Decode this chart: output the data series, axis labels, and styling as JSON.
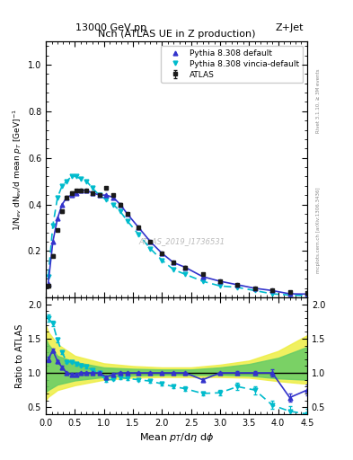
{
  "title_top": "13000 GeV pp",
  "title_right": "Z+Jet",
  "plot_title": "Nch (ATLAS UE in Z production)",
  "xlabel": "Mean $p_T$/d$\\eta$ d$\\phi$",
  "ylabel_main": "1/N$_{ev}$ dN$_{ev}$/d mean $p_T$ [GeV]$^{-1}$",
  "ylabel_ratio": "Ratio to ATLAS",
  "watermark": "ATLAS_2019_I1736531",
  "rivet_text": "Rivet 3.1.10, ≥ 3M events",
  "mcplots_text": "mcplots.cern.ch [arXiv:1306.3436]",
  "atlas_x": [
    0.04,
    0.12,
    0.2,
    0.28,
    0.36,
    0.44,
    0.52,
    0.6,
    0.7,
    0.8,
    0.92,
    1.04,
    1.16,
    1.28,
    1.4,
    1.6,
    1.8,
    2.0,
    2.2,
    2.4,
    2.7,
    3.0,
    3.3,
    3.6,
    3.9,
    4.2,
    4.5
  ],
  "atlas_y": [
    0.05,
    0.18,
    0.29,
    0.37,
    0.43,
    0.45,
    0.46,
    0.46,
    0.46,
    0.45,
    0.44,
    0.47,
    0.44,
    0.4,
    0.36,
    0.3,
    0.24,
    0.19,
    0.15,
    0.13,
    0.1,
    0.07,
    0.055,
    0.04,
    0.03,
    0.025,
    0.02
  ],
  "atlas_yerr": [
    0.005,
    0.005,
    0.005,
    0.005,
    0.005,
    0.005,
    0.005,
    0.005,
    0.005,
    0.005,
    0.005,
    0.005,
    0.005,
    0.005,
    0.005,
    0.005,
    0.005,
    0.005,
    0.004,
    0.004,
    0.003,
    0.003,
    0.002,
    0.002,
    0.002,
    0.002,
    0.002
  ],
  "pythia_default_x": [
    0.04,
    0.12,
    0.2,
    0.28,
    0.36,
    0.44,
    0.52,
    0.6,
    0.7,
    0.8,
    0.92,
    1.04,
    1.16,
    1.28,
    1.4,
    1.6,
    1.8,
    2.0,
    2.2,
    2.4,
    2.7,
    3.0,
    3.3,
    3.6,
    3.9,
    4.2,
    4.5
  ],
  "pythia_default_y": [
    0.06,
    0.24,
    0.34,
    0.4,
    0.43,
    0.44,
    0.45,
    0.46,
    0.46,
    0.45,
    0.44,
    0.44,
    0.43,
    0.4,
    0.36,
    0.3,
    0.24,
    0.19,
    0.15,
    0.13,
    0.09,
    0.07,
    0.055,
    0.04,
    0.03,
    0.016,
    0.015
  ],
  "pythia_vincia_x": [
    0.04,
    0.12,
    0.2,
    0.28,
    0.36,
    0.44,
    0.52,
    0.6,
    0.7,
    0.8,
    0.92,
    1.04,
    1.16,
    1.28,
    1.4,
    1.6,
    1.8,
    2.0,
    2.2,
    2.4,
    2.7,
    3.0,
    3.3,
    3.6,
    3.9,
    4.2,
    4.5
  ],
  "pythia_vincia_y": [
    0.09,
    0.31,
    0.43,
    0.48,
    0.5,
    0.52,
    0.52,
    0.51,
    0.5,
    0.47,
    0.44,
    0.42,
    0.4,
    0.37,
    0.33,
    0.27,
    0.21,
    0.16,
    0.12,
    0.1,
    0.07,
    0.05,
    0.044,
    0.03,
    0.016,
    0.011,
    0.008
  ],
  "ratio_default_y": [
    1.2,
    1.33,
    1.17,
    1.08,
    1.0,
    0.98,
    0.98,
    1.0,
    1.0,
    1.0,
    1.0,
    0.94,
    0.98,
    1.0,
    1.0,
    1.0,
    1.0,
    1.0,
    1.0,
    1.0,
    0.9,
    1.0,
    1.0,
    1.0,
    1.0,
    0.64,
    0.75
  ],
  "ratio_default_err": [
    0.04,
    0.03,
    0.02,
    0.02,
    0.02,
    0.02,
    0.02,
    0.02,
    0.02,
    0.02,
    0.02,
    0.02,
    0.02,
    0.02,
    0.02,
    0.02,
    0.02,
    0.02,
    0.02,
    0.02,
    0.02,
    0.02,
    0.03,
    0.03,
    0.05,
    0.06,
    0.08
  ],
  "ratio_vincia_y": [
    1.8,
    1.72,
    1.48,
    1.3,
    1.16,
    1.16,
    1.13,
    1.11,
    1.09,
    1.04,
    1.0,
    0.89,
    0.91,
    0.93,
    0.92,
    0.9,
    0.88,
    0.84,
    0.8,
    0.77,
    0.7,
    0.71,
    0.8,
    0.75,
    0.53,
    0.44,
    0.4
  ],
  "ratio_vincia_err": [
    0.05,
    0.04,
    0.03,
    0.03,
    0.02,
    0.02,
    0.02,
    0.02,
    0.02,
    0.02,
    0.02,
    0.02,
    0.02,
    0.02,
    0.02,
    0.02,
    0.02,
    0.02,
    0.02,
    0.03,
    0.03,
    0.04,
    0.05,
    0.06,
    0.06,
    0.07,
    0.08
  ],
  "yellow_band_x": [
    0.0,
    0.04,
    0.2,
    0.5,
    1.0,
    1.5,
    2.0,
    2.5,
    3.0,
    3.5,
    4.0,
    4.5
  ],
  "yellow_band_low": [
    0.6,
    0.65,
    0.75,
    0.82,
    0.9,
    0.93,
    0.94,
    0.94,
    0.94,
    0.93,
    0.88,
    0.84
  ],
  "yellow_band_high": [
    1.7,
    1.6,
    1.42,
    1.25,
    1.14,
    1.1,
    1.08,
    1.08,
    1.12,
    1.18,
    1.32,
    1.55
  ],
  "green_band_low": [
    0.72,
    0.75,
    0.83,
    0.89,
    0.94,
    0.96,
    0.97,
    0.97,
    0.97,
    0.96,
    0.92,
    0.9
  ],
  "green_band_high": [
    1.5,
    1.42,
    1.25,
    1.16,
    1.08,
    1.06,
    1.05,
    1.05,
    1.08,
    1.13,
    1.22,
    1.38
  ],
  "atlas_color": "#1a1a1a",
  "pythia_default_color": "#3333cc",
  "pythia_vincia_color": "#00bbcc",
  "yellow_color": "#eeee44",
  "green_color": "#66cc66",
  "xlim": [
    0,
    4.5
  ],
  "ylim_main": [
    0,
    1.1
  ],
  "ylim_ratio": [
    0.4,
    2.1
  ],
  "yticks_main": [
    0.2,
    0.4,
    0.6,
    0.8,
    1.0
  ],
  "yticks_ratio": [
    0.5,
    1.0,
    1.5,
    2.0
  ],
  "legend_labels": [
    "ATLAS",
    "Pythia 8.308 default",
    "Pythia 8.308 vincia-default"
  ]
}
